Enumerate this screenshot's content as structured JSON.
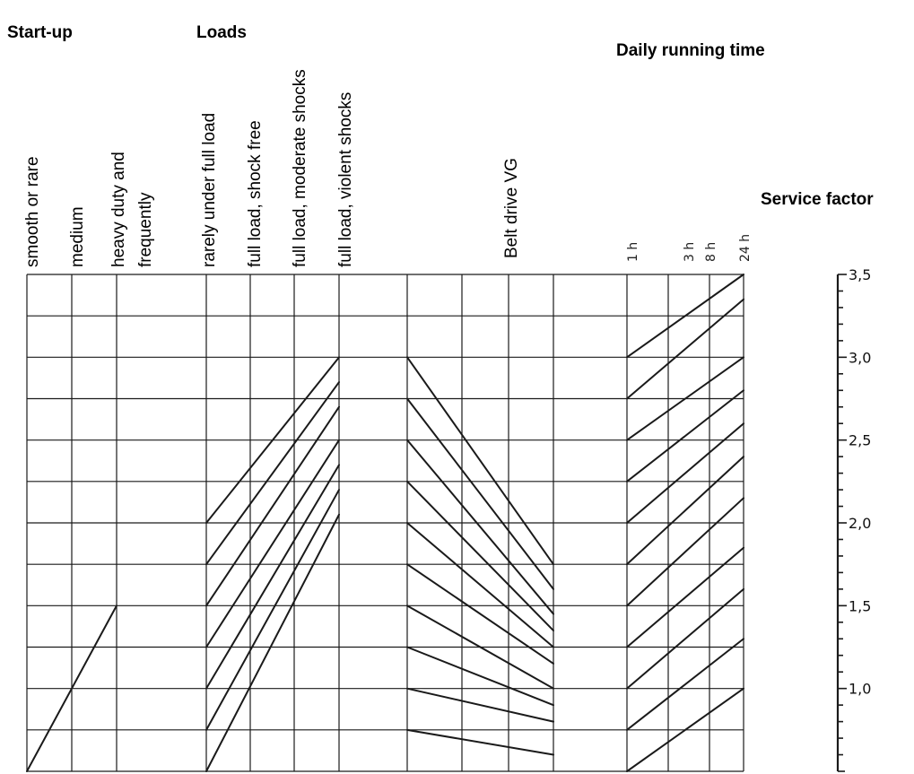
{
  "headings": {
    "startup": "Start-up",
    "loads": "Loads",
    "daily": "Daily running time",
    "service_factor": "Service factor"
  },
  "column_labels": {
    "startup": [
      "smooth or rare",
      "medium",
      "heavy duty and",
      "frequently"
    ],
    "loads": [
      "rarely under full load",
      "full load, shock free",
      "full load, moderate shocks",
      "full load, violent shocks"
    ],
    "belt": "Belt drive VG",
    "hours": [
      "1 h",
      "3 h",
      "8 h",
      "24 h"
    ]
  },
  "service_factor_scale": {
    "min": 0.5,
    "max": 3.5,
    "major_labels": [
      "3,5",
      "3,0",
      "2,5",
      "2,0",
      "1,5",
      "1,0"
    ],
    "major_values": [
      3.5,
      3.0,
      2.5,
      2.0,
      1.5,
      1.0
    ],
    "minor_step": 0.1
  },
  "guide_lines": {
    "startup": [
      {
        "from": 0.5,
        "to": 1.5
      }
    ],
    "loads": [
      {
        "from": 2.0,
        "to": 3.0
      },
      {
        "from": 1.75,
        "to": 2.85
      },
      {
        "from": 1.5,
        "to": 2.7
      },
      {
        "from": 1.25,
        "to": 2.5
      },
      {
        "from": 1.0,
        "to": 2.35
      },
      {
        "from": 0.75,
        "to": 2.2
      },
      {
        "from": 0.5,
        "to": 2.05
      }
    ],
    "belt_drive": [
      {
        "from": 3.0,
        "to": 1.75
      },
      {
        "from": 2.75,
        "to": 1.6
      },
      {
        "from": 2.5,
        "to": 1.45
      },
      {
        "from": 2.25,
        "to": 1.35
      },
      {
        "from": 2.0,
        "to": 1.25
      },
      {
        "from": 1.75,
        "to": 1.15
      },
      {
        "from": 1.5,
        "to": 1.0
      },
      {
        "from": 1.25,
        "to": 0.9
      },
      {
        "from": 1.0,
        "to": 0.8
      },
      {
        "from": 0.75,
        "to": 0.6
      }
    ],
    "running_time": [
      {
        "from": 3.0,
        "to": 3.5
      },
      {
        "from": 2.75,
        "to": 3.35
      },
      {
        "from": 2.5,
        "to": 3.0
      },
      {
        "from": 2.25,
        "to": 2.8
      },
      {
        "from": 2.0,
        "to": 2.6
      },
      {
        "from": 1.75,
        "to": 2.4
      },
      {
        "from": 1.5,
        "to": 2.15
      },
      {
        "from": 1.25,
        "to": 1.85
      },
      {
        "from": 1.0,
        "to": 1.6
      },
      {
        "from": 0.75,
        "to": 1.3
      },
      {
        "from": 0.5,
        "to": 1.0
      }
    ]
  }
}
